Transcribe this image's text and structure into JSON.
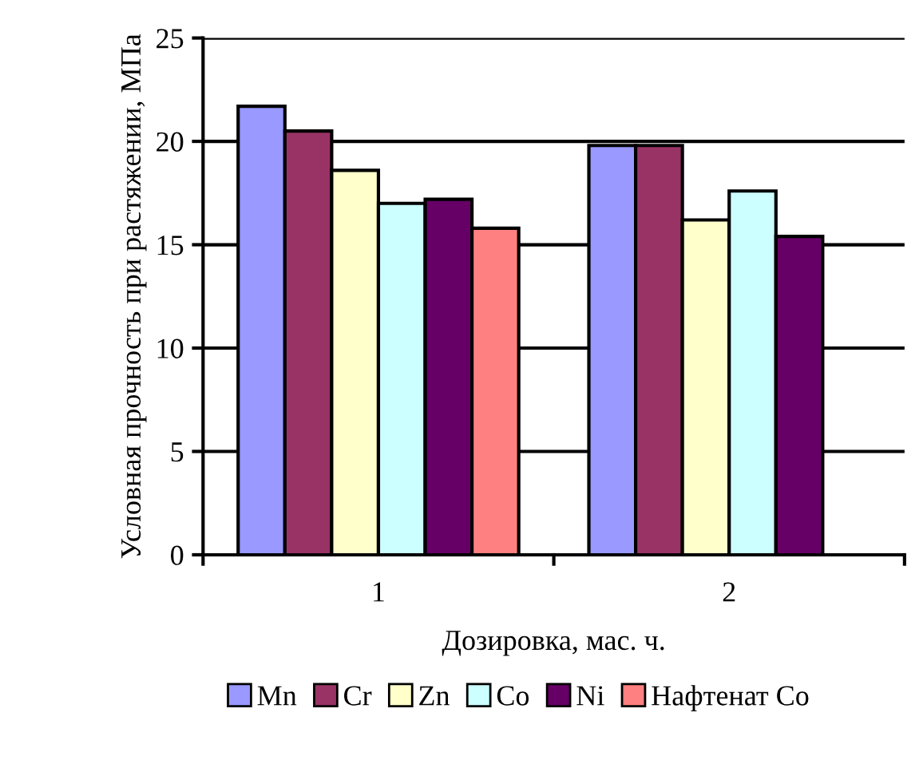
{
  "chart_data": {
    "type": "bar",
    "categories": [
      "1",
      "2"
    ],
    "xlabel": "Дозировка, мас. ч.",
    "ylabel": "Условная прочность при растяжении, МПа",
    "ylim": [
      0,
      25
    ],
    "yticks": [
      0,
      5,
      10,
      15,
      20,
      25
    ],
    "grid": "y",
    "legend": "bottom",
    "series": [
      {
        "name": "Mn",
        "color": "#9999ff",
        "values": [
          21.7,
          19.8
        ]
      },
      {
        "name": "Cr",
        "color": "#993366",
        "values": [
          20.5,
          19.8
        ]
      },
      {
        "name": "Zn",
        "color": "#ffffcc",
        "values": [
          18.6,
          16.2
        ]
      },
      {
        "name": "Co",
        "color": "#ccffff",
        "values": [
          17.0,
          17.6
        ]
      },
      {
        "name": "Ni",
        "color": "#660066",
        "values": [
          17.2,
          15.4
        ]
      },
      {
        "name": "Нафтенат Co",
        "color": "#ff8080",
        "values": [
          15.8,
          null
        ]
      }
    ]
  }
}
